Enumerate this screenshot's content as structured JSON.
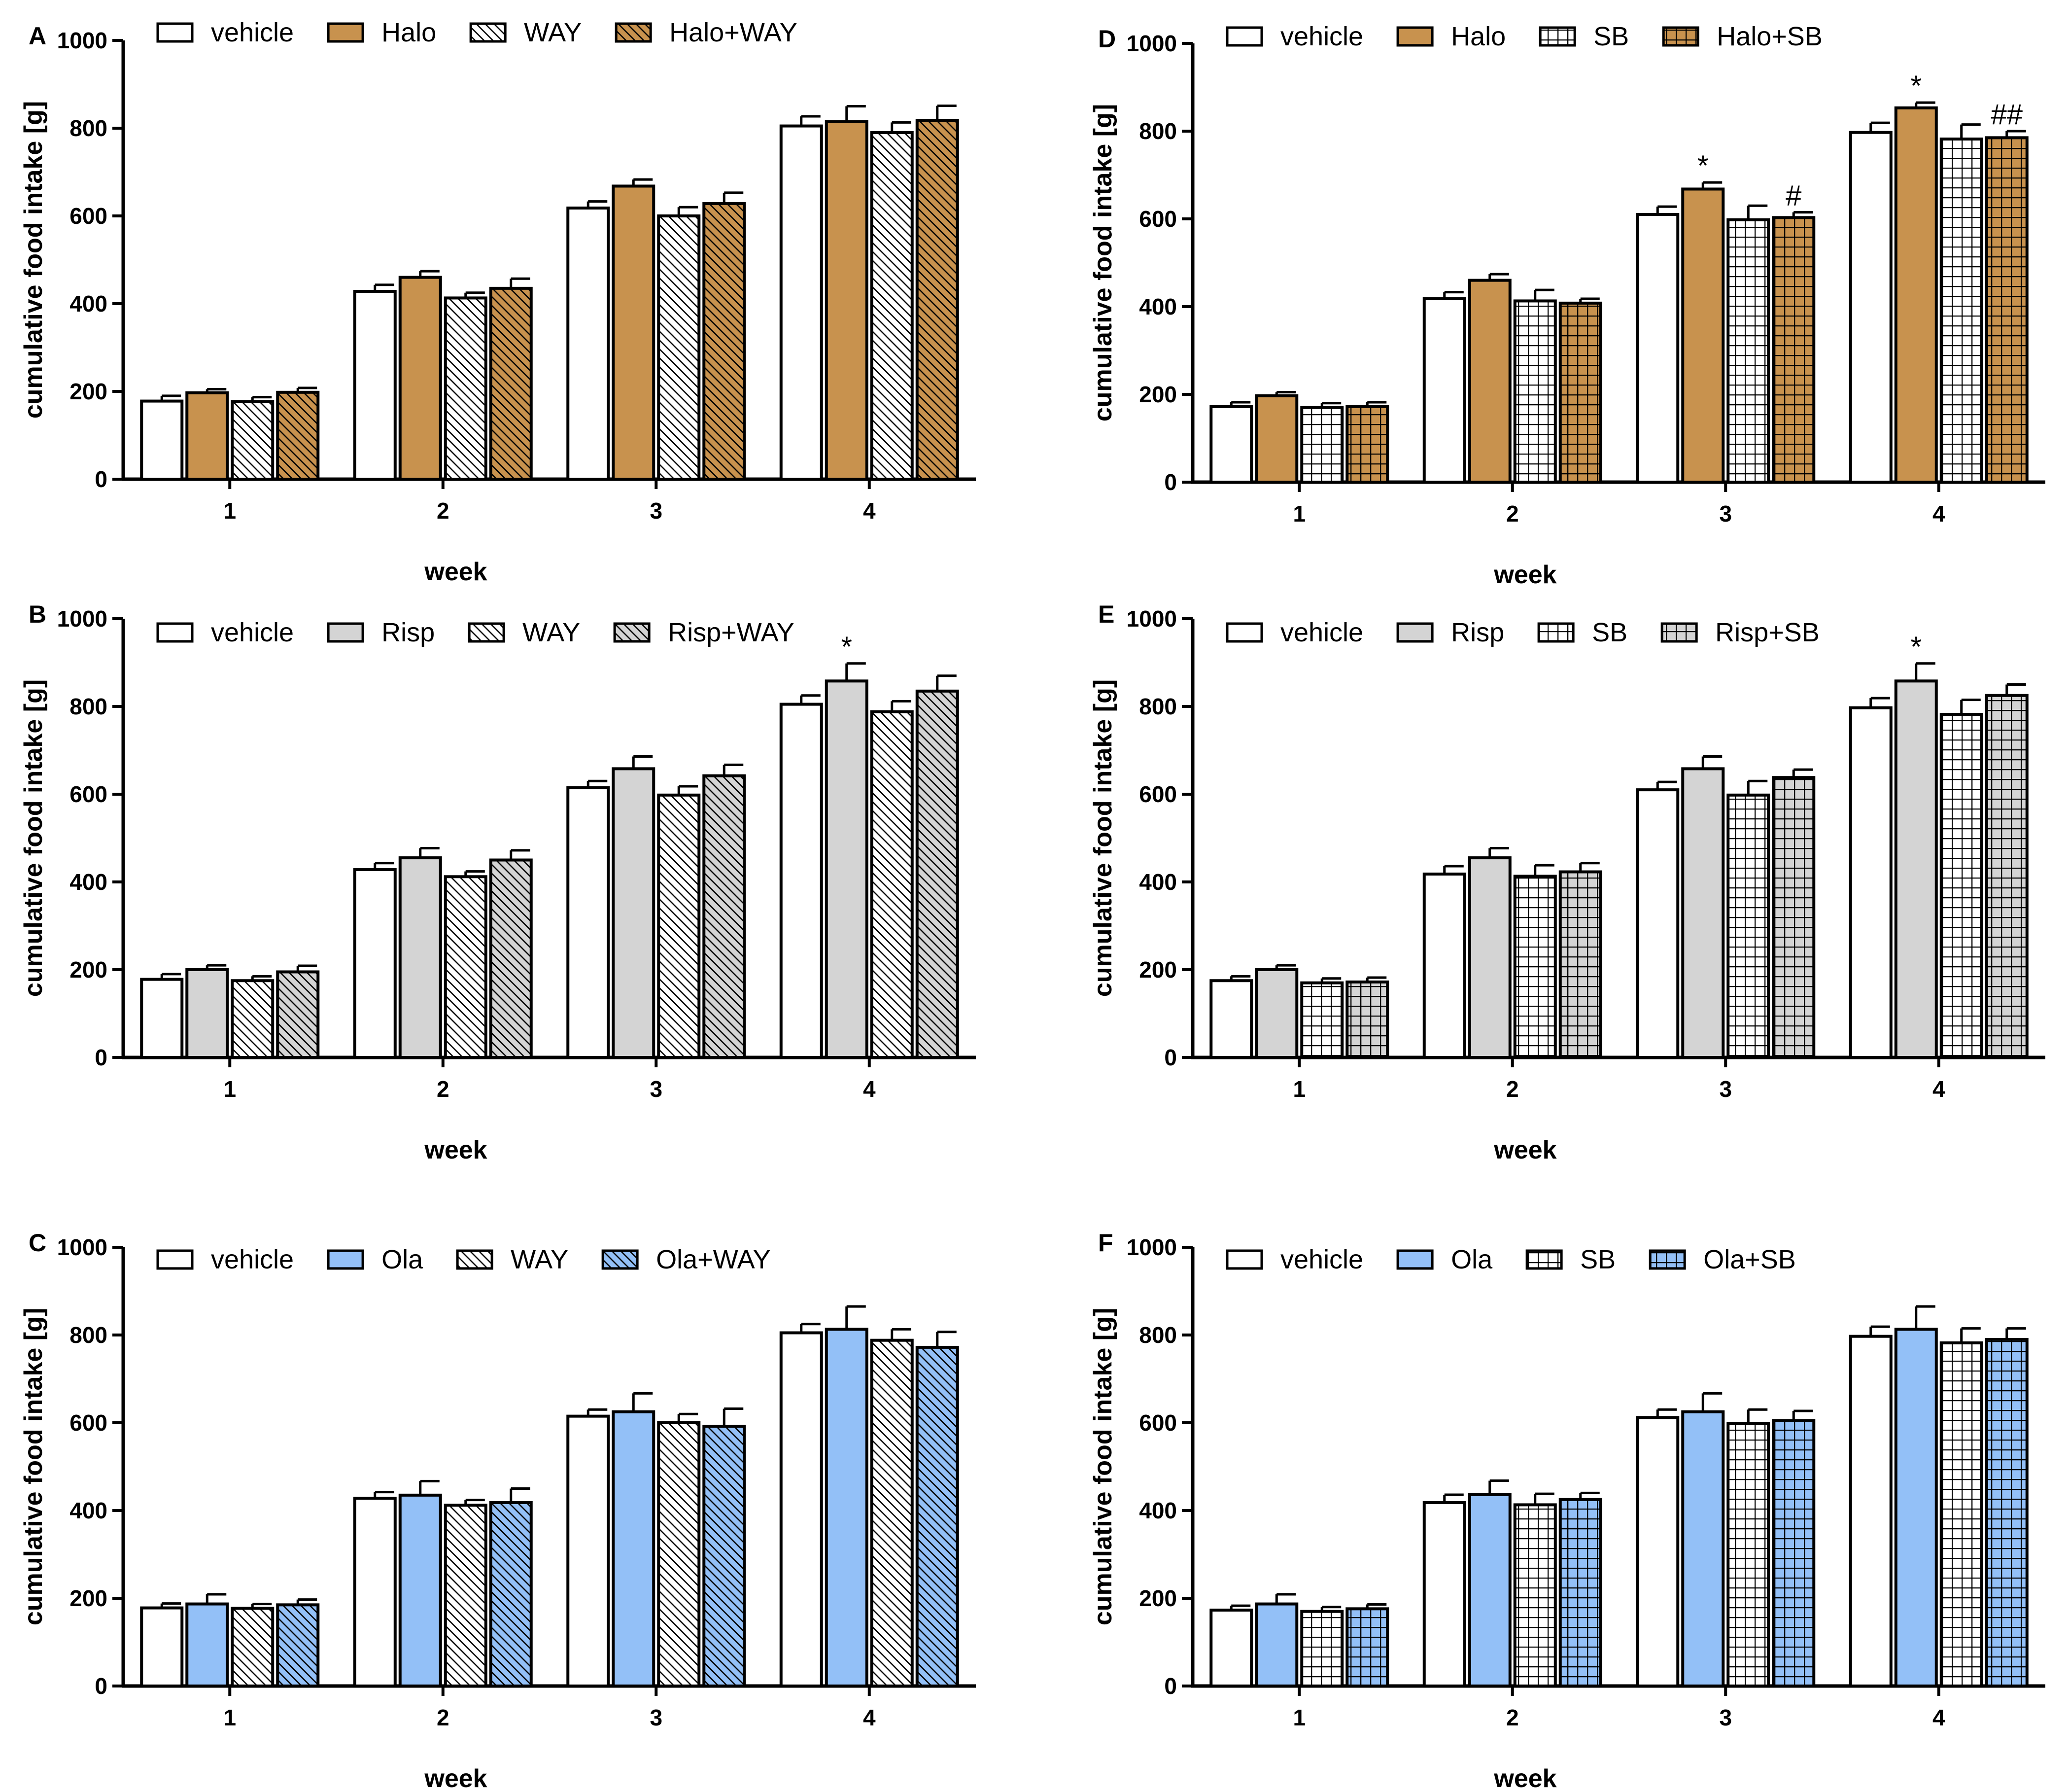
{
  "figure": {
    "description_free": true,
    "colors": {
      "vehicle": "#ffffff",
      "halo": "#c8924e",
      "risp": "#d4d4d4",
      "ola": "#93c0f7",
      "axis": "#000000"
    }
  },
  "chart_data": [
    {
      "id": "A",
      "panel_label": "A",
      "type": "bar",
      "title": "",
      "xlabel": "week",
      "ylabel": "cumulative food intake [g]",
      "ylim": [
        0,
        1000
      ],
      "yticks": [
        0,
        200,
        400,
        600,
        800,
        1000
      ],
      "categories": [
        "1",
        "2",
        "3",
        "4"
      ],
      "series": [
        {
          "name": "vehicle",
          "fill": "#ffffff",
          "pattern": "none",
          "values": [
            178,
            428,
            618,
            805
          ],
          "errors": [
            12,
            15,
            15,
            22
          ],
          "annotations": [
            "",
            "",
            "",
            ""
          ]
        },
        {
          "name": "Halo",
          "fill": "#c8924e",
          "pattern": "none",
          "values": [
            197,
            460,
            668,
            815
          ],
          "errors": [
            8,
            14,
            15,
            35
          ],
          "annotations": [
            "",
            "",
            "",
            ""
          ]
        },
        {
          "name": "WAY",
          "fill": "#ffffff",
          "pattern": "diag",
          "values": [
            177,
            413,
            600,
            790
          ],
          "errors": [
            10,
            12,
            20,
            23
          ],
          "annotations": [
            "",
            "",
            "",
            ""
          ]
        },
        {
          "name": "Halo+WAY",
          "fill": "#c8924e",
          "pattern": "diag",
          "values": [
            198,
            435,
            628,
            818
          ],
          "errors": [
            10,
            22,
            25,
            33
          ],
          "annotations": [
            "",
            "",
            "",
            ""
          ]
        }
      ]
    },
    {
      "id": "B",
      "panel_label": "B",
      "type": "bar",
      "title": "",
      "xlabel": "week",
      "ylabel": "cumulative food intake [g]",
      "ylim": [
        0,
        1000
      ],
      "yticks": [
        0,
        200,
        400,
        600,
        800,
        1000
      ],
      "categories": [
        "1",
        "2",
        "3",
        "4"
      ],
      "series": [
        {
          "name": "vehicle",
          "fill": "#ffffff",
          "pattern": "none",
          "values": [
            178,
            428,
            615,
            805
          ],
          "errors": [
            12,
            15,
            15,
            20
          ],
          "annotations": [
            "",
            "",
            "",
            ""
          ]
        },
        {
          "name": "Risp",
          "fill": "#d4d4d4",
          "pattern": "none",
          "values": [
            200,
            455,
            658,
            858
          ],
          "errors": [
            10,
            22,
            28,
            40
          ],
          "annotations": [
            "",
            "",
            "",
            "*"
          ]
        },
        {
          "name": "WAY",
          "fill": "#ffffff",
          "pattern": "diag",
          "values": [
            175,
            412,
            598,
            788
          ],
          "errors": [
            10,
            12,
            20,
            24
          ],
          "annotations": [
            "",
            "",
            "",
            ""
          ]
        },
        {
          "name": "Risp+WAY",
          "fill": "#d4d4d4",
          "pattern": "diag",
          "values": [
            195,
            450,
            642,
            835
          ],
          "errors": [
            14,
            22,
            25,
            35
          ],
          "annotations": [
            "",
            "",
            "",
            ""
          ]
        }
      ]
    },
    {
      "id": "C",
      "panel_label": "C",
      "type": "bar",
      "title": "",
      "xlabel": "week",
      "ylabel": "cumulative food intake [g]",
      "ylim": [
        0,
        1000
      ],
      "yticks": [
        0,
        200,
        400,
        600,
        800,
        1000
      ],
      "categories": [
        "1",
        "2",
        "3",
        "4"
      ],
      "series": [
        {
          "name": "vehicle",
          "fill": "#ffffff",
          "pattern": "none",
          "values": [
            178,
            428,
            615,
            805
          ],
          "errors": [
            10,
            14,
            15,
            20
          ],
          "annotations": [
            "",
            "",
            "",
            ""
          ]
        },
        {
          "name": "Ola",
          "fill": "#93c0f7",
          "pattern": "none",
          "values": [
            187,
            435,
            625,
            813
          ],
          "errors": [
            22,
            32,
            42,
            52
          ],
          "annotations": [
            "",
            "",
            "",
            ""
          ]
        },
        {
          "name": "WAY",
          "fill": "#ffffff",
          "pattern": "diag",
          "values": [
            177,
            412,
            600,
            788
          ],
          "errors": [
            10,
            12,
            20,
            25
          ],
          "annotations": [
            "",
            "",
            "",
            ""
          ]
        },
        {
          "name": "Ola+WAY",
          "fill": "#93c0f7",
          "pattern": "diag",
          "values": [
            185,
            418,
            592,
            772
          ],
          "errors": [
            12,
            32,
            40,
            35
          ],
          "annotations": [
            "",
            "",
            "",
            ""
          ]
        }
      ]
    },
    {
      "id": "D",
      "panel_label": "D",
      "type": "bar",
      "title": "",
      "xlabel": "week",
      "ylabel": "cumulative food intake [g]",
      "ylim": [
        0,
        1000
      ],
      "yticks": [
        0,
        200,
        400,
        600,
        800,
        1000
      ],
      "categories": [
        "1",
        "2",
        "3",
        "4"
      ],
      "series": [
        {
          "name": "vehicle",
          "fill": "#ffffff",
          "pattern": "none",
          "values": [
            172,
            418,
            610,
            797
          ],
          "errors": [
            10,
            15,
            18,
            22
          ],
          "annotations": [
            "",
            "",
            "",
            ""
          ]
        },
        {
          "name": "Halo",
          "fill": "#c8924e",
          "pattern": "none",
          "values": [
            197,
            460,
            668,
            853
          ],
          "errors": [
            8,
            14,
            15,
            12
          ],
          "annotations": [
            "",
            "",
            "*",
            "*"
          ]
        },
        {
          "name": "SB",
          "fill": "#ffffff",
          "pattern": "grid",
          "values": [
            170,
            413,
            598,
            782
          ],
          "errors": [
            10,
            25,
            32,
            33
          ],
          "annotations": [
            "",
            "",
            "",
            ""
          ]
        },
        {
          "name": "Halo+SB",
          "fill": "#c8924e",
          "pattern": "grid",
          "values": [
            172,
            408,
            603,
            785
          ],
          "errors": [
            10,
            10,
            12,
            15
          ],
          "annotations": [
            "",
            "",
            "#",
            "##"
          ]
        }
      ]
    },
    {
      "id": "E",
      "panel_label": "E",
      "type": "bar",
      "title": "",
      "xlabel": "week",
      "ylabel": "cumulative food intake [g]",
      "ylim": [
        0,
        1000
      ],
      "yticks": [
        0,
        200,
        400,
        600,
        800,
        1000
      ],
      "categories": [
        "1",
        "2",
        "3",
        "4"
      ],
      "series": [
        {
          "name": "vehicle",
          "fill": "#ffffff",
          "pattern": "none",
          "values": [
            175,
            418,
            610,
            797
          ],
          "errors": [
            10,
            18,
            18,
            22
          ],
          "annotations": [
            "",
            "",
            "",
            ""
          ]
        },
        {
          "name": "Risp",
          "fill": "#d4d4d4",
          "pattern": "none",
          "values": [
            200,
            455,
            658,
            858
          ],
          "errors": [
            10,
            22,
            28,
            40
          ],
          "annotations": [
            "",
            "",
            "",
            "*"
          ]
        },
        {
          "name": "SB",
          "fill": "#ffffff",
          "pattern": "grid",
          "values": [
            170,
            413,
            598,
            782
          ],
          "errors": [
            10,
            25,
            32,
            33
          ],
          "annotations": [
            "",
            "",
            "",
            ""
          ]
        },
        {
          "name": "Risp+SB",
          "fill": "#d4d4d4",
          "pattern": "grid",
          "values": [
            172,
            423,
            638,
            825
          ],
          "errors": [
            10,
            20,
            18,
            25
          ],
          "annotations": [
            "",
            "",
            "",
            ""
          ]
        }
      ]
    },
    {
      "id": "F",
      "panel_label": "F",
      "type": "bar",
      "title": "",
      "xlabel": "week",
      "ylabel": "cumulative food intake [g]",
      "ylim": [
        0,
        1000
      ],
      "yticks": [
        0,
        200,
        400,
        600,
        800,
        1000
      ],
      "categories": [
        "1",
        "2",
        "3",
        "4"
      ],
      "series": [
        {
          "name": "vehicle",
          "fill": "#ffffff",
          "pattern": "none",
          "values": [
            173,
            418,
            612,
            797
          ],
          "errors": [
            10,
            18,
            18,
            22
          ],
          "annotations": [
            "",
            "",
            "",
            ""
          ]
        },
        {
          "name": "Ola",
          "fill": "#93c0f7",
          "pattern": "none",
          "values": [
            187,
            436,
            625,
            813
          ],
          "errors": [
            22,
            32,
            42,
            52
          ],
          "annotations": [
            "",
            "",
            "",
            ""
          ]
        },
        {
          "name": "SB",
          "fill": "#ffffff",
          "pattern": "grid",
          "values": [
            170,
            413,
            598,
            782
          ],
          "errors": [
            10,
            25,
            32,
            33
          ],
          "annotations": [
            "",
            "",
            "",
            ""
          ]
        },
        {
          "name": "Ola+SB",
          "fill": "#93c0f7",
          "pattern": "grid",
          "values": [
            176,
            425,
            605,
            790
          ],
          "errors": [
            10,
            15,
            22,
            25
          ],
          "annotations": [
            "",
            "",
            "",
            ""
          ]
        }
      ]
    }
  ]
}
